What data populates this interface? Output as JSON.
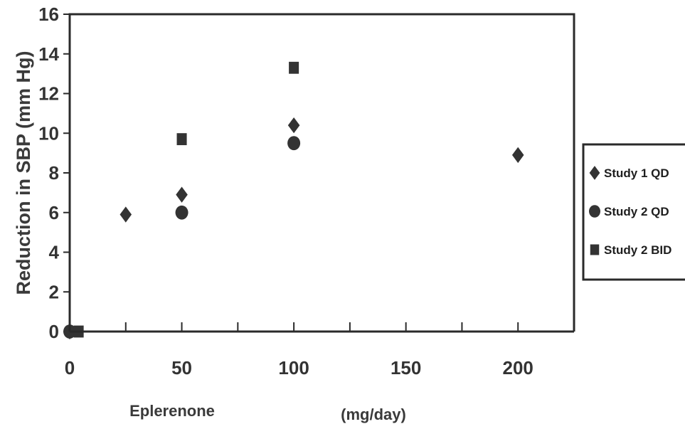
{
  "chart_data": {
    "type": "scatter",
    "ylabel": "Reduction in SBP (mm Hg)",
    "xlabel_left": "Eplerenone",
    "xlabel_right": "(mg/day)",
    "xlim": [
      0,
      225
    ],
    "ylim": [
      0,
      16
    ],
    "x_ticks": [
      0,
      50,
      100,
      150,
      200
    ],
    "x_tick_labels": [
      "0",
      "50",
      "100",
      "150",
      "200"
    ],
    "x_minor_ticks": [
      25,
      75,
      125,
      175
    ],
    "y_ticks": [
      0,
      2,
      4,
      6,
      8,
      10,
      12,
      14,
      16
    ],
    "y_tick_labels": [
      "0",
      "2",
      "4",
      "6",
      "8",
      "10",
      "12",
      "14",
      "16"
    ],
    "grid": false,
    "legend_position": "right",
    "series": [
      {
        "name": "Study 1 QD",
        "marker": "diamond",
        "color": "#333333",
        "x": [
          0,
          25,
          50,
          100,
          200
        ],
        "y": [
          0,
          5.9,
          6.9,
          10.4,
          8.9
        ]
      },
      {
        "name": "Study 2 QD",
        "marker": "circle",
        "color": "#333333",
        "x": [
          0,
          50,
          100
        ],
        "y": [
          0,
          6.0,
          9.5
        ]
      },
      {
        "name": "Study 2 BID",
        "marker": "square",
        "color": "#333333",
        "x": [
          4,
          50,
          100
        ],
        "y": [
          0,
          9.7,
          13.3
        ]
      }
    ]
  }
}
